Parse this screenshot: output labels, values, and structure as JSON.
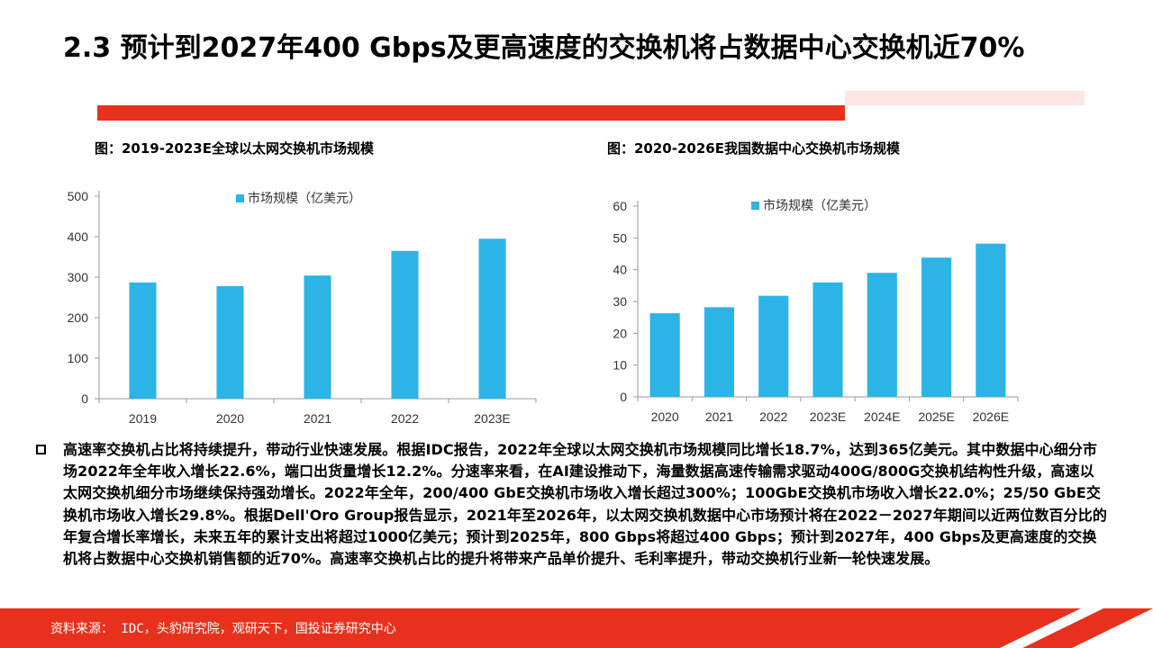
{
  "slide": {
    "title": "2.3 预计到2027年400 Gbps及更高速度的交换机将占数据中心交换机近70%",
    "body": "高速率交换机占比将持续提升，带动行业快速发展。根据IDC报告，2022年全球以太网交换机市场规模同比增长18.7%，达到365亿美元。其中数据中心细分市场2022年全年收入增长22.6%，端口出货量增长12.2%。分速率来看，在AI建设推动下，海量数据高速传输需求驱动400G/800G交换机结构性升级，高速以太网交换机细分市场继续保持强劲增长。2022年全年，200/400 GbE交换机市场收入增长超过300%；100GbE交换机市场收入增长22.0%；25/50 GbE交换机市场收入增长29.8%。根据Dell'Oro Group报告显示，2021年至2026年，以太网交换机数据中心市场预计将在2022－2027年期间以近两位数百分比的年复合增长率增长，未来五年的累计支出将超过1000亿美元；预计到2025年，800 Gbps将超过400 Gbps；预计到2027年，400 Gbps及更高速度的交换机将占数据中心交换机销售额的近70%。高速率交换机占比的提升将带来产品单价提升、毛利率提升，带动交换机行业新一轮快速发展。",
    "source": "资料来源： IDC，头豹研究院，观研天下，国投证券研究中心"
  },
  "colors": {
    "accent": "#e8311d",
    "bar": "#2cb4e6"
  },
  "chart_data": [
    {
      "type": "bar",
      "title": "图：2019-2023E全球以太网交换机市场规模",
      "categories": [
        "2019",
        "2020",
        "2021",
        "2022",
        "2023E"
      ],
      "series": [
        {
          "name": "市场规模（亿美元）",
          "values": [
            287,
            278,
            304,
            365,
            395
          ]
        }
      ],
      "ylim": [
        0,
        500
      ],
      "yticks": [
        0,
        100,
        200,
        300,
        400,
        500
      ],
      "grid": false,
      "legend": "top-left"
    },
    {
      "type": "bar",
      "title": "图：2020-2026E我国数据中心交换机市场规模",
      "categories": [
        "2020",
        "2021",
        "2022",
        "2023E",
        "2024E",
        "2025E",
        "2026E"
      ],
      "series": [
        {
          "name": "市场规模（亿美元）",
          "values": [
            26.3,
            28.2,
            31.8,
            36.0,
            39.0,
            43.8,
            48.2
          ]
        }
      ],
      "ylim": [
        0,
        60
      ],
      "yticks": [
        0,
        10,
        20,
        30,
        40,
        50,
        60
      ],
      "grid": false,
      "legend": "top-left"
    }
  ]
}
